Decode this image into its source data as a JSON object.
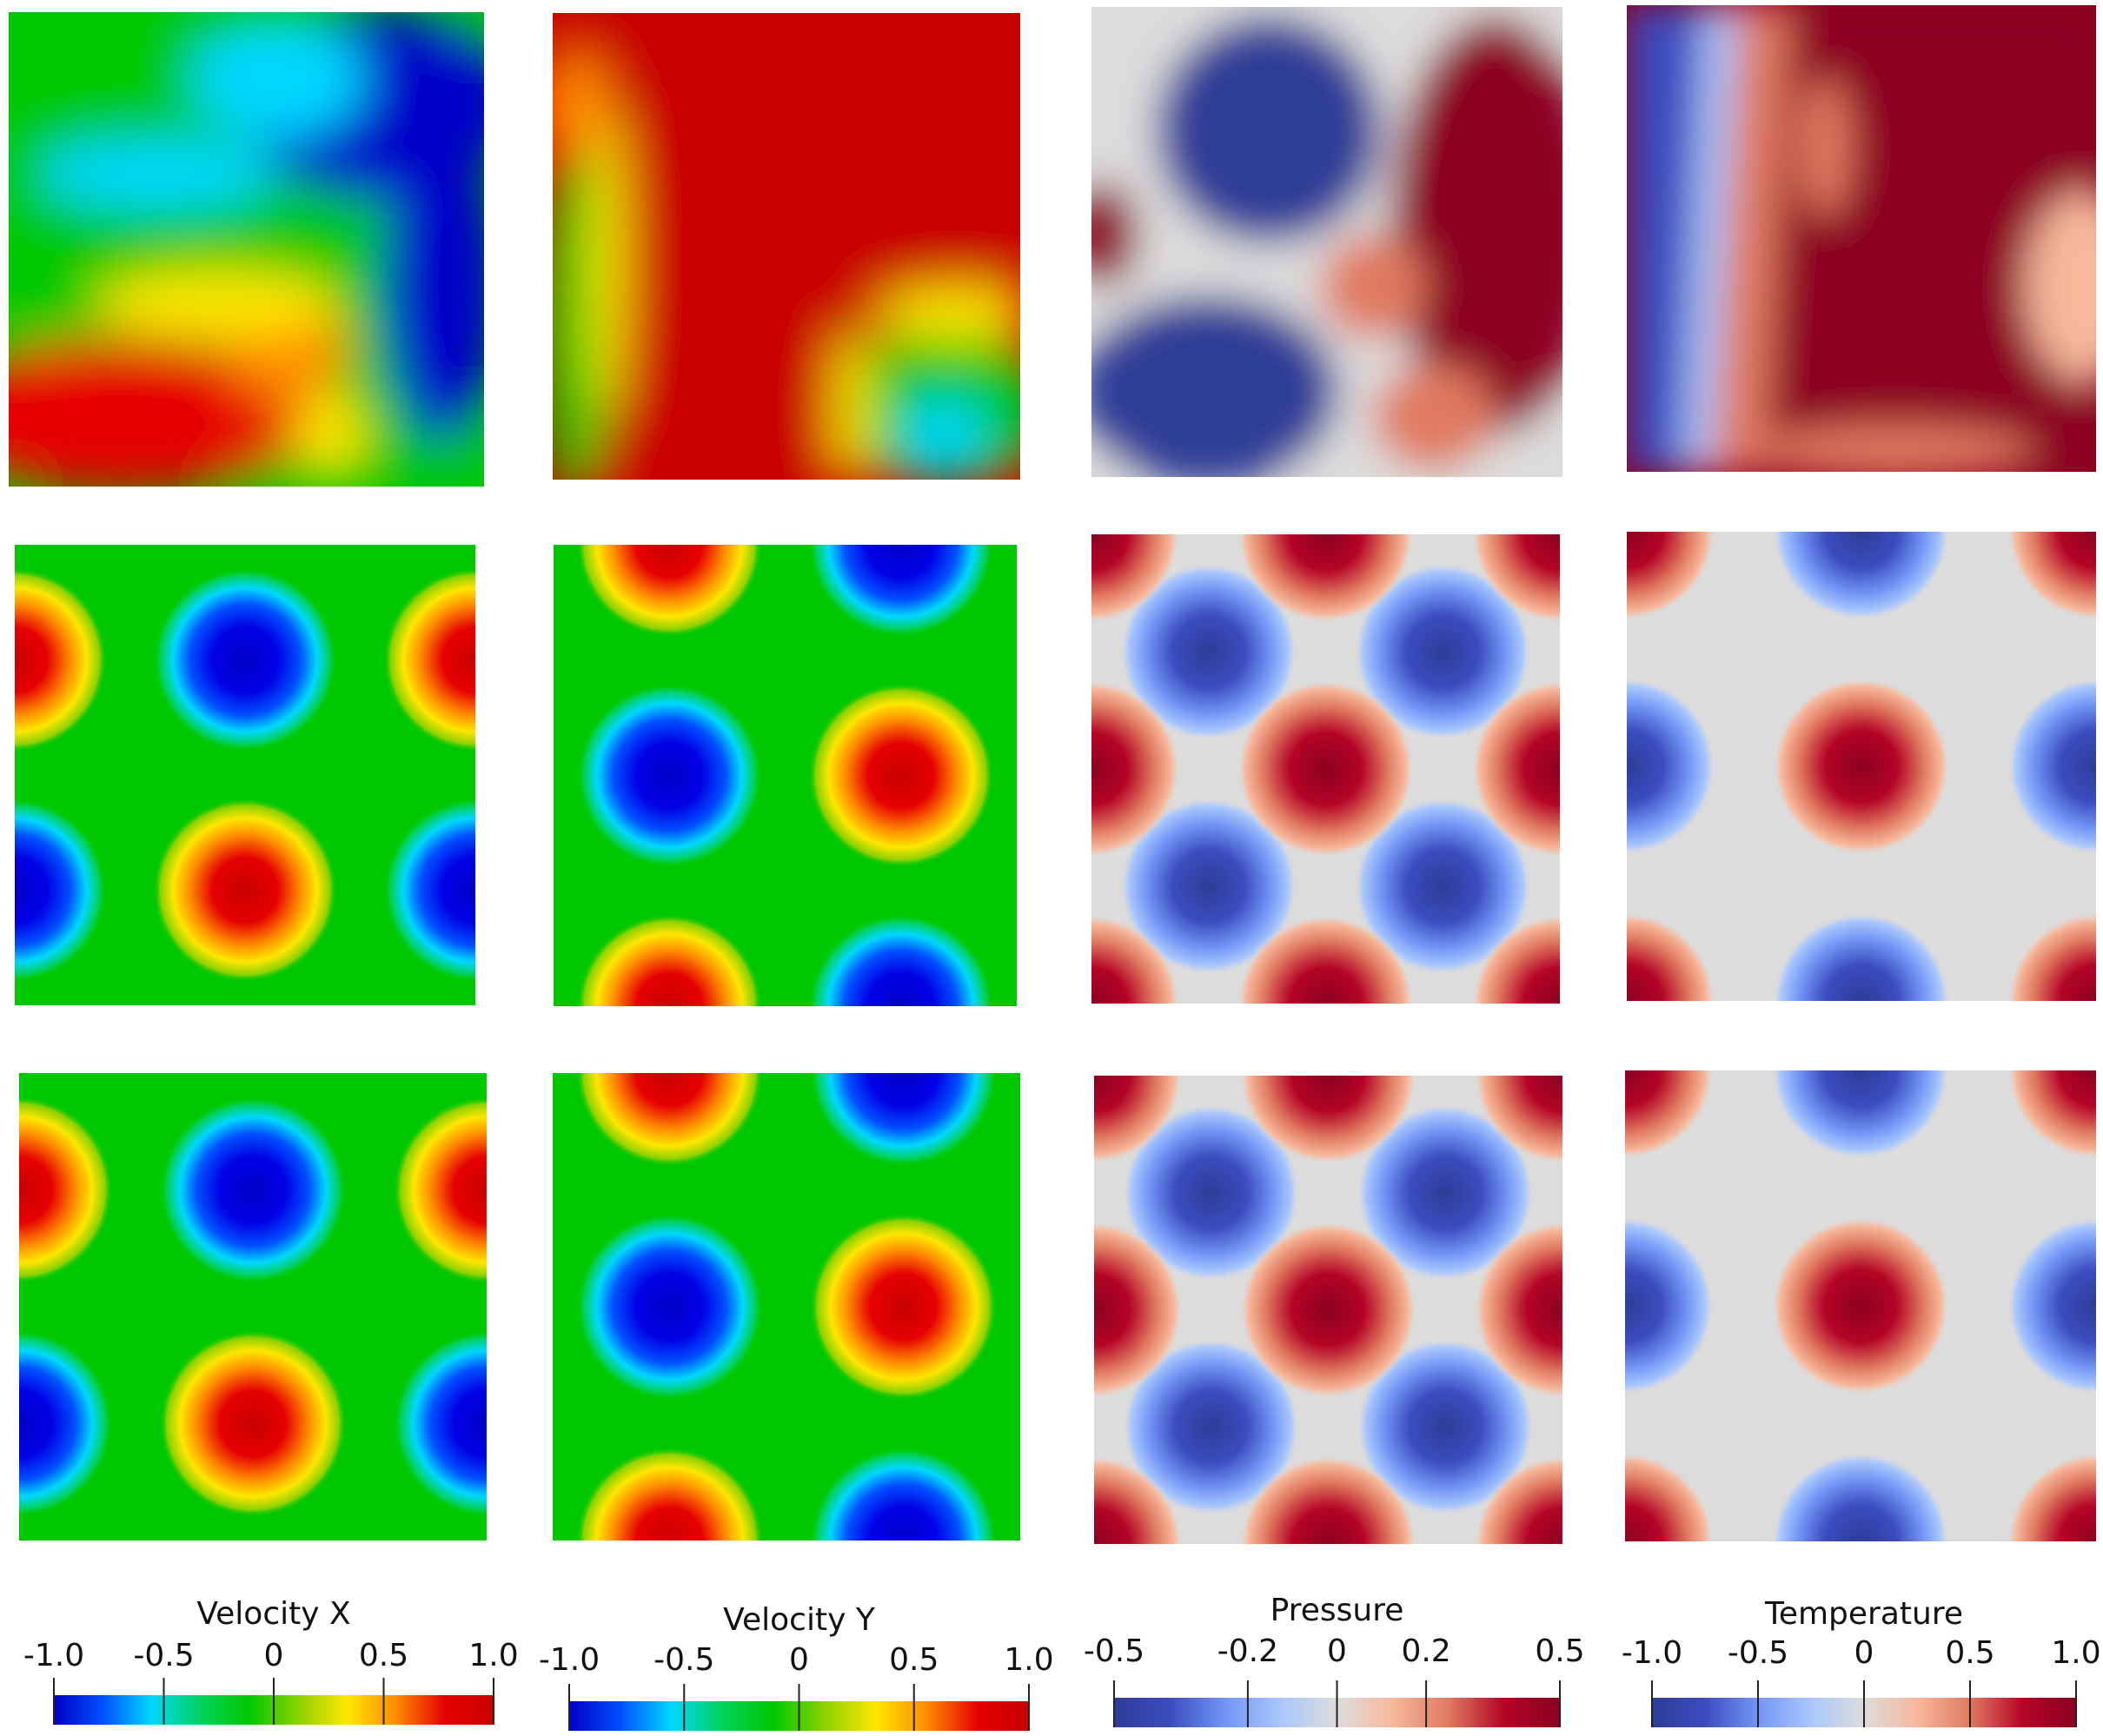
{
  "columns": [
    {
      "field": "velocity_x",
      "colormap": "jet",
      "colorbar": {
        "title": "Velocity X",
        "ticks": [
          "-1.0",
          "-0.5",
          "0",
          "0.5",
          "1.0"
        ],
        "range": [
          -1.0,
          1.0
        ]
      }
    },
    {
      "field": "velocity_y",
      "colormap": "jet",
      "colorbar": {
        "title": "Velocity Y",
        "ticks": [
          "-1.0",
          "-0.5",
          "0",
          "0.5",
          "1.0"
        ],
        "range": [
          -1.0,
          1.0
        ]
      }
    },
    {
      "field": "pressure",
      "colormap": "coolwarm",
      "colorbar": {
        "title": "Pressure",
        "ticks": [
          "-0.5",
          "-0.2",
          "0",
          "0.2",
          "0.5"
        ],
        "range": [
          -0.5,
          0.5
        ]
      }
    },
    {
      "field": "temperature",
      "colormap": "coolwarm",
      "colorbar": {
        "title": "Temperature",
        "ticks": [
          "-1.0",
          "-0.5",
          "0",
          "0.5",
          "1.0"
        ],
        "range": [
          -1.0,
          1.0
        ]
      }
    }
  ],
  "rows": 3,
  "colormaps": {
    "jet": [
      "#0000c8",
      "#0050ff",
      "#00d7ff",
      "#00d25a",
      "#00c800",
      "#8cd200",
      "#ffe600",
      "#ff8c00",
      "#e60000",
      "#c80000"
    ],
    "coolwarm": [
      "#2e3c96",
      "#3b4cc0",
      "#7396f5",
      "#aac7fd",
      "#dddcdc",
      "#f7b89c",
      "#e07a60",
      "#b40426",
      "#8c0020"
    ]
  }
}
